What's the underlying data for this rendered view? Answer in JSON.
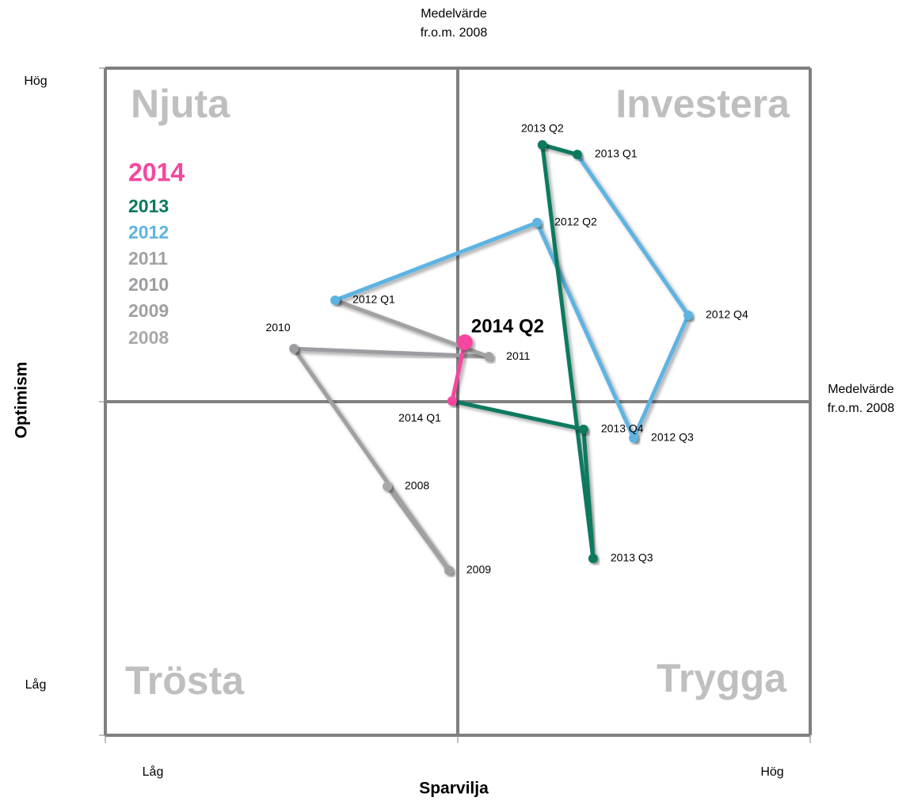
{
  "chart_data": {
    "type": "scatter",
    "xlabel": "Sparvilja",
    "ylabel": "Optimism",
    "xlim": [
      -100,
      100
    ],
    "ylim": [
      -100,
      100
    ],
    "xticks": [
      -100,
      0,
      100
    ],
    "yticks": [
      -100,
      0,
      100
    ],
    "x_end_labels": [
      "Låg",
      "Hög"
    ],
    "y_end_labels": [
      "Låg",
      "Hög"
    ],
    "mean_label_x": [
      "Medelvärde",
      "fr.o.m. 2008"
    ],
    "mean_label_y": [
      "Medelvärde",
      "fr.o.m. 2008"
    ],
    "quadrants": [
      "Njuta",
      "Investera",
      "Trösta",
      "Trygga"
    ],
    "series": [
      {
        "name": "2014",
        "color": "#f5479f",
        "points": [
          {
            "label": "2014 Q1",
            "x": -1.6,
            "y": 0.2
          },
          {
            "label": "2014 Q2",
            "x": 2,
            "y": 17.8
          }
        ]
      },
      {
        "name": "2013",
        "color": "#0b7a5e",
        "points": [
          {
            "label": "2013 Q1",
            "x": 33.9,
            "y": 74.1
          },
          {
            "label": "2013 Q2",
            "x": 24,
            "y": 77
          },
          {
            "label": "2013 Q3",
            "x": 38.4,
            "y": -47
          },
          {
            "label": "2013 Q4",
            "x": 35.7,
            "y": -8.3
          }
        ]
      },
      {
        "name": "2012",
        "color": "#5db4e2",
        "points": [
          {
            "label": "2012 Q1",
            "x": -34.8,
            "y": 30.4
          },
          {
            "label": "2012 Q2",
            "x": 22.5,
            "y": 53.7
          },
          {
            "label": "2012 Q3",
            "x": 49.9,
            "y": -10.9
          },
          {
            "label": "2012 Q4",
            "x": 65.4,
            "y": 25.9
          }
        ]
      },
      {
        "name": "2011",
        "color": "#a2a2a2",
        "points": [
          {
            "label": "2011",
            "x": 8.8,
            "y": 13.5
          }
        ]
      },
      {
        "name": "2010",
        "color": "#9d9ca1",
        "points": [
          {
            "label": "2010",
            "x": -46.5,
            "y": 15.9
          }
        ]
      },
      {
        "name": "2009",
        "color": "#a0a0a0",
        "points": [
          {
            "label": "2009",
            "x": -2.5,
            "y": -50.6
          }
        ]
      },
      {
        "name": "2008",
        "color": "#a9a9a9",
        "points": [
          {
            "label": "2008",
            "x": -20,
            "y": -25.4
          }
        ]
      }
    ]
  }
}
